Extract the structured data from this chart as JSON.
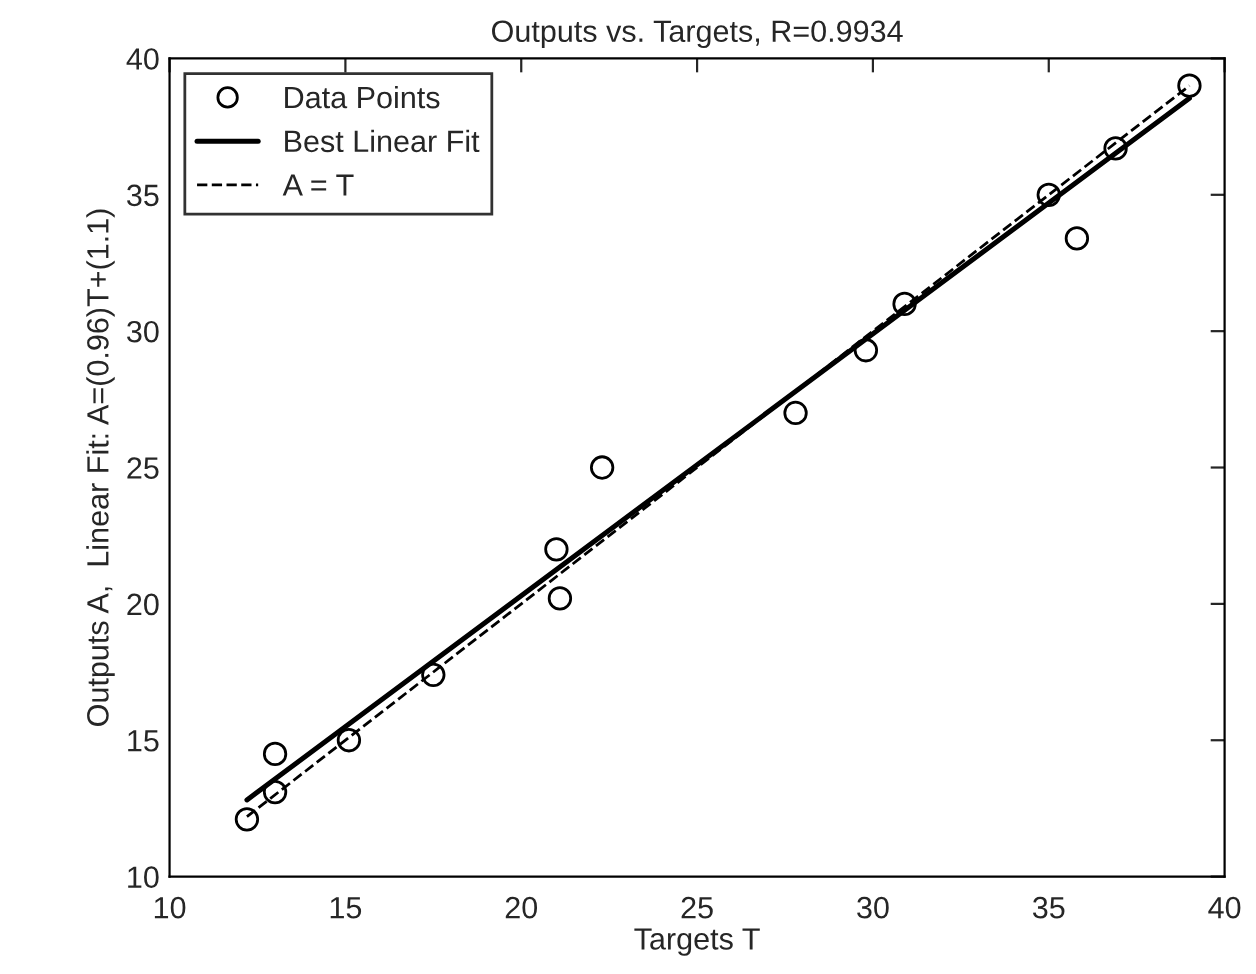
{
  "chart_data": {
    "type": "scatter",
    "title": "Outputs vs. Targets, R=0.9934",
    "xlabel": "Targets T",
    "ylabel": "Outputs A,  Linear Fit: A=(0.96)T+(1.1)",
    "xlim": [
      10,
      40
    ],
    "xticks": [
      10,
      15,
      20,
      25,
      30,
      35,
      40
    ],
    "ylim": [
      10,
      40
    ],
    "yticks": [
      10,
      15,
      20,
      25,
      30,
      35,
      40
    ],
    "grid": false,
    "legend": "top left",
    "series": [
      {
        "name": "Data Points",
        "marker": "circle",
        "color": "#000000",
        "x": [
          12.2,
          13.0,
          13.0,
          15.1,
          17.5,
          21.0,
          21.1,
          22.3,
          27.8,
          29.8,
          30.9,
          35.0,
          35.8,
          36.9,
          39.0
        ],
        "values": [
          12.1,
          13.1,
          14.5,
          15.0,
          17.4,
          22.0,
          20.2,
          25.0,
          27.0,
          29.3,
          31.0,
          35.0,
          33.4,
          36.7,
          39.0
        ]
      },
      {
        "name": "Best Linear Fit",
        "type": "line",
        "line_style": "solid",
        "color": "#000000",
        "x": [
          12.2,
          39.0
        ],
        "values": [
          12.81,
          38.54
        ]
      },
      {
        "name": "A = T",
        "type": "line",
        "line_style": "dashed",
        "color": "#000000",
        "x": [
          12.2,
          39.0
        ],
        "values": [
          12.2,
          39.0
        ]
      }
    ]
  }
}
